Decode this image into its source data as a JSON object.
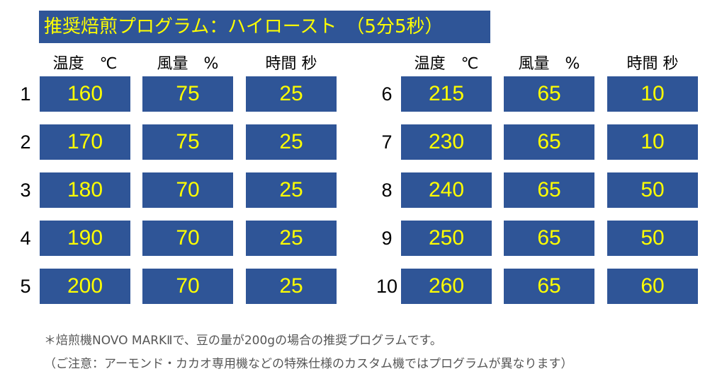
{
  "title": "推奨焙煎プログラム：ハイロースト　（5分5秒）",
  "headers": {
    "temp": "温度　℃",
    "airflow": "風量　%",
    "time": "時間 秒"
  },
  "colors": {
    "cell_bg": "#2f5597",
    "cell_text": "#ffff00",
    "label_text": "#000000",
    "note_text": "#555555"
  },
  "steps": [
    {
      "no": "1",
      "temp": "160",
      "airflow": "75",
      "time": "25"
    },
    {
      "no": "2",
      "temp": "170",
      "airflow": "75",
      "time": "25"
    },
    {
      "no": "3",
      "temp": "180",
      "airflow": "70",
      "time": "25"
    },
    {
      "no": "4",
      "temp": "190",
      "airflow": "70",
      "time": "25"
    },
    {
      "no": "5",
      "temp": "200",
      "airflow": "70",
      "time": "25"
    },
    {
      "no": "6",
      "temp": "215",
      "airflow": "65",
      "time": "10"
    },
    {
      "no": "7",
      "temp": "230",
      "airflow": "65",
      "time": "10"
    },
    {
      "no": "8",
      "temp": "240",
      "airflow": "65",
      "time": "50"
    },
    {
      "no": "9",
      "temp": "250",
      "airflow": "65",
      "time": "50"
    },
    {
      "no": "10",
      "temp": "260",
      "airflow": "65",
      "time": "60"
    }
  ],
  "notes": {
    "line1": "＊焙煎機NOVO MARKⅡで、豆の量が200gの場合の推奨プログラムです。",
    "line2": "（ご注意：アーモンド・カカオ専用機などの特殊仕様のカスタム機ではプログラムが異なります）"
  }
}
